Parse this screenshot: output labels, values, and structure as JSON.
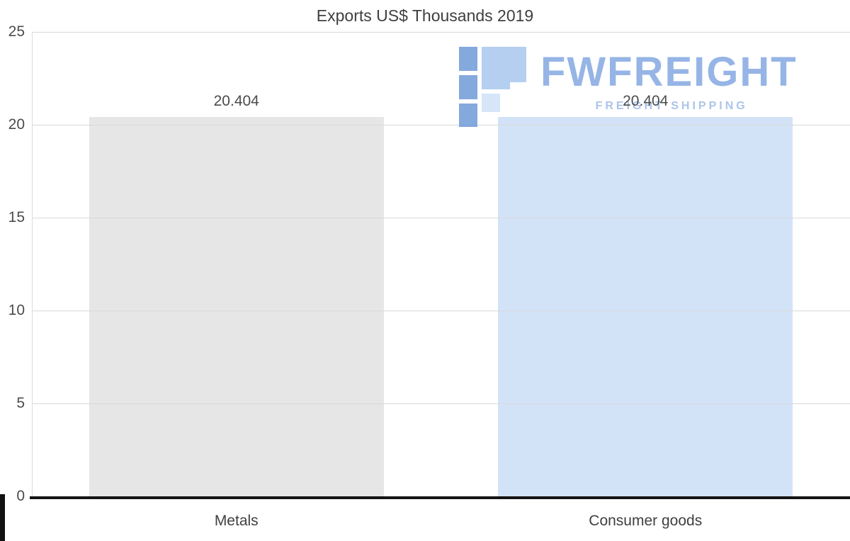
{
  "chart_data": {
    "type": "bar",
    "title": "Exports US$ Thousands 2019",
    "categories": [
      "Metals",
      "Consumer goods"
    ],
    "values": [
      20.404,
      20.404
    ],
    "value_labels": [
      "20.404",
      "20.404"
    ],
    "series": [
      {
        "name": "Exports US$ Thousands 2019",
        "values": [
          20.404,
          20.404
        ]
      }
    ],
    "bar_colors": [
      "#e6e6e6",
      "#d2e3f8"
    ],
    "xlabel": "",
    "ylabel": "",
    "ylim": [
      0,
      25
    ],
    "yticks": [
      0,
      5,
      10,
      15,
      20,
      25
    ],
    "grid": true,
    "legend": "none"
  },
  "watermark": {
    "brand": "FWFREIGHT",
    "tagline": "FREIGHT SHIPPING",
    "color": "#84a9e2",
    "icon": "freight-flag-logo",
    "icon_color_dark": "#6f9bd8",
    "icon_color_light": "#a9c7ef"
  },
  "colors": {
    "background": "#ffffff",
    "grid": "#d9d9d9",
    "axis_line": "#141414",
    "title_text": "#3f3f3f",
    "tick_text": "#4c4c4c"
  }
}
